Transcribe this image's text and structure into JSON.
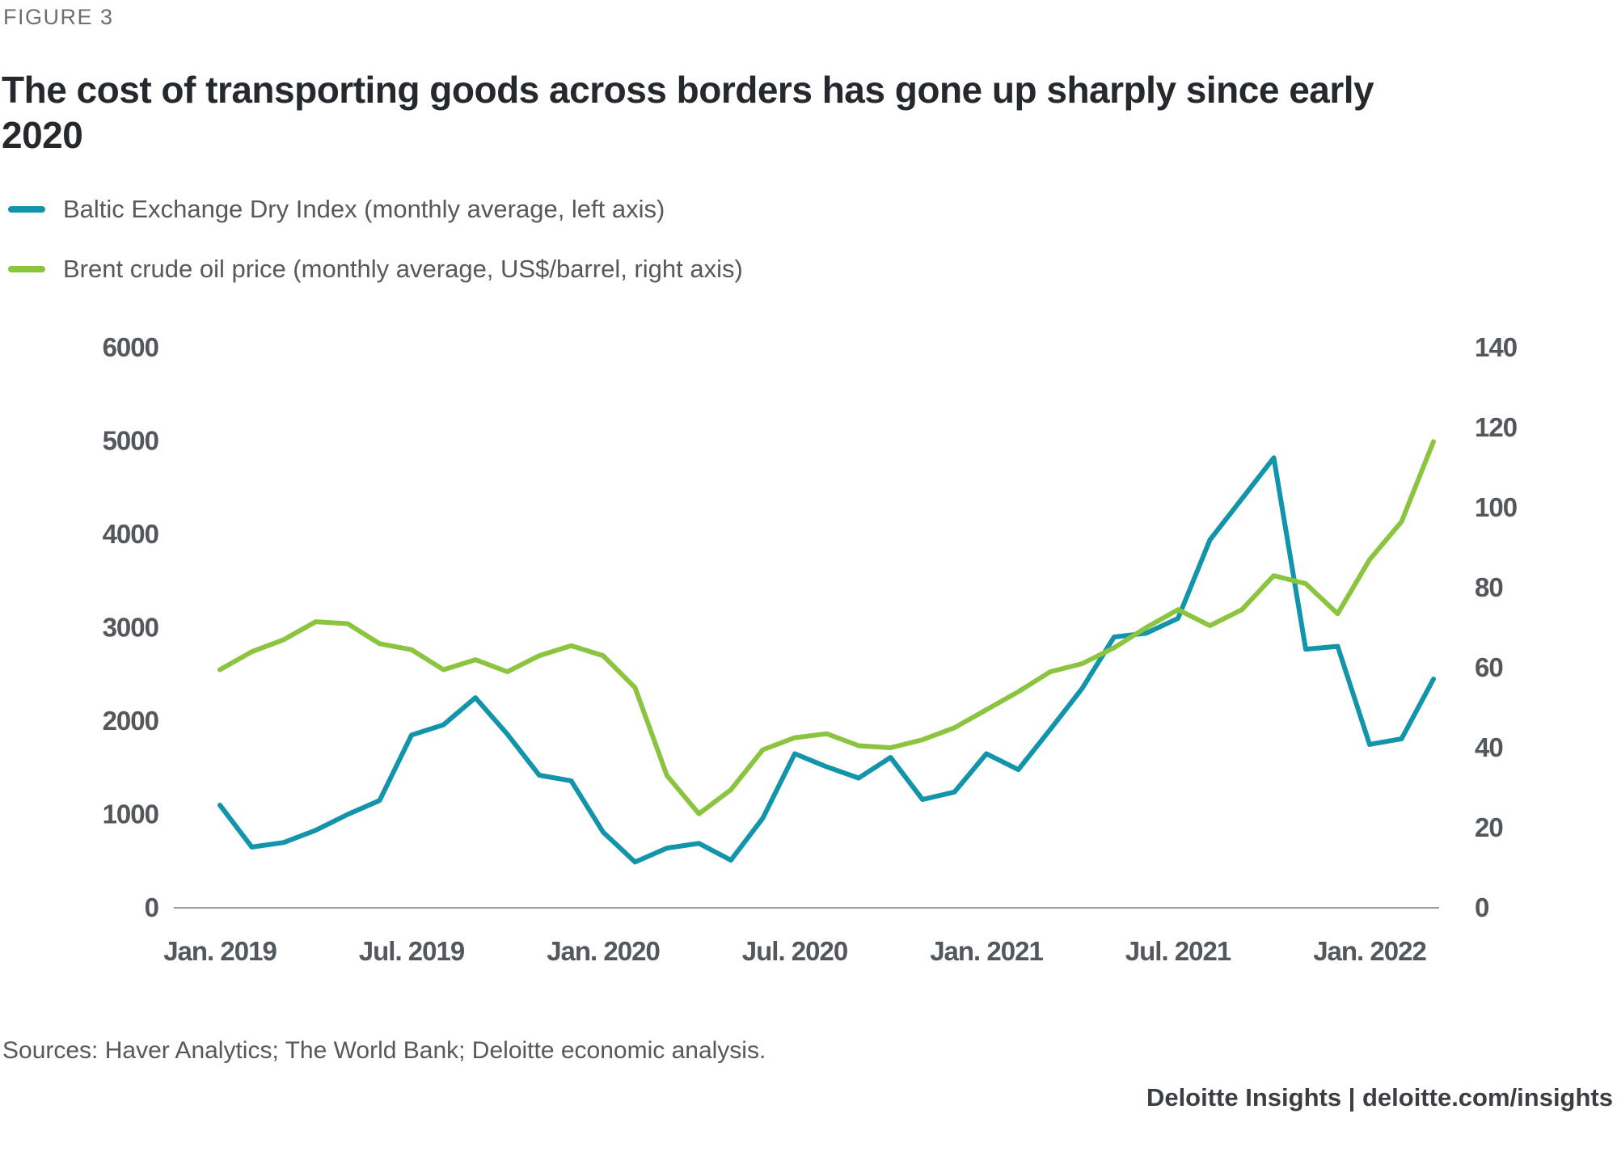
{
  "figure_label": "FIGURE 3",
  "title": "The cost of transporting goods across borders has gone up sharply since early 2020",
  "legend": {
    "items": [
      {
        "label": "Baltic Exchange Dry Index (monthly average, left axis)",
        "color": "#1295AB"
      },
      {
        "label": "Brent crude oil price (monthly average, US$/barrel, right axis)",
        "color": "#8BC540"
      }
    ]
  },
  "chart_data": {
    "type": "line",
    "x_labels": [
      "Jan. 2019",
      "Feb. 2019",
      "Mar. 2019",
      "Apr. 2019",
      "May 2019",
      "Jun. 2019",
      "Jul. 2019",
      "Aug. 2019",
      "Sep. 2019",
      "Oct. 2019",
      "Nov. 2019",
      "Dec. 2019",
      "Jan. 2020",
      "Feb. 2020",
      "Mar. 2020",
      "Apr. 2020",
      "May 2020",
      "Jun. 2020",
      "Jul. 2020",
      "Aug. 2020",
      "Sep. 2020",
      "Oct. 2020",
      "Nov. 2020",
      "Dec. 2020",
      "Jan. 2021",
      "Feb. 2021",
      "Mar. 2021",
      "Apr. 2021",
      "May 2021",
      "Jun. 2021",
      "Jul. 2021",
      "Aug. 2021",
      "Sep. 2021",
      "Oct. 2021",
      "Nov. 2021",
      "Dec. 2021",
      "Jan. 2022",
      "Feb. 2022",
      "Mar. 2022"
    ],
    "x_tick_labels": [
      "Jan. 2019",
      "Jul. 2019",
      "Jan. 2020",
      "Jul. 2020",
      "Jan. 2021",
      "Jul. 2021",
      "Jan. 2022"
    ],
    "x_tick_month_indices": [
      0,
      6,
      12,
      18,
      24,
      30,
      36
    ],
    "left_axis": {
      "ticks": [
        0,
        1000,
        2000,
        3000,
        4000,
        5000,
        6000
      ],
      "range": [
        0,
        6000
      ]
    },
    "right_axis": {
      "ticks": [
        0,
        20,
        40,
        60,
        80,
        100,
        120,
        140
      ],
      "range": [
        0,
        140
      ]
    },
    "series": [
      {
        "name": "Baltic Exchange Dry Index (monthly average, left axis)",
        "axis": "left",
        "color": "#1295AB",
        "values": [
          1100,
          650,
          700,
          830,
          1000,
          1150,
          1850,
          1960,
          2250,
          1860,
          1420,
          1360,
          810,
          490,
          640,
          690,
          510,
          960,
          1650,
          1510,
          1390,
          1610,
          1160,
          1240,
          1650,
          1480,
          1910,
          2350,
          2900,
          2940,
          3100,
          3940,
          4380,
          4820,
          2770,
          2800,
          1750,
          1810,
          2450
        ]
      },
      {
        "name": "Brent crude oil price (monthly average, US$/barrel, right axis)",
        "axis": "right",
        "color": "#8BC540",
        "values": [
          59.5,
          64,
          67,
          71.5,
          71,
          66,
          64.5,
          59.5,
          62,
          59,
          63,
          65.5,
          63,
          55,
          33,
          23.5,
          29.5,
          39.5,
          42.5,
          43.5,
          40.5,
          40,
          42,
          45,
          49.5,
          54,
          59,
          61,
          65,
          70,
          74.5,
          70.5,
          74.5,
          83,
          81,
          73.5,
          87,
          96.5,
          116.5
        ]
      }
    ],
    "grid": false,
    "legend_position": "top-left",
    "title": "The cost of transporting goods across borders has gone up sharply since early 2020"
  },
  "sources": "Sources: Haver Analytics; The World Bank; Deloitte economic analysis.",
  "footer": "Deloitte Insights | deloitte.com/insights",
  "colors": {
    "teal": "#1295AB",
    "green": "#8BC540",
    "title_text": "#25282C",
    "label_text": "#55585C",
    "tick_text": "#54575B",
    "figure_label_text": "#6B6F73",
    "axis_line": "#9B9B9B",
    "footer_text": "#3B3F44"
  }
}
